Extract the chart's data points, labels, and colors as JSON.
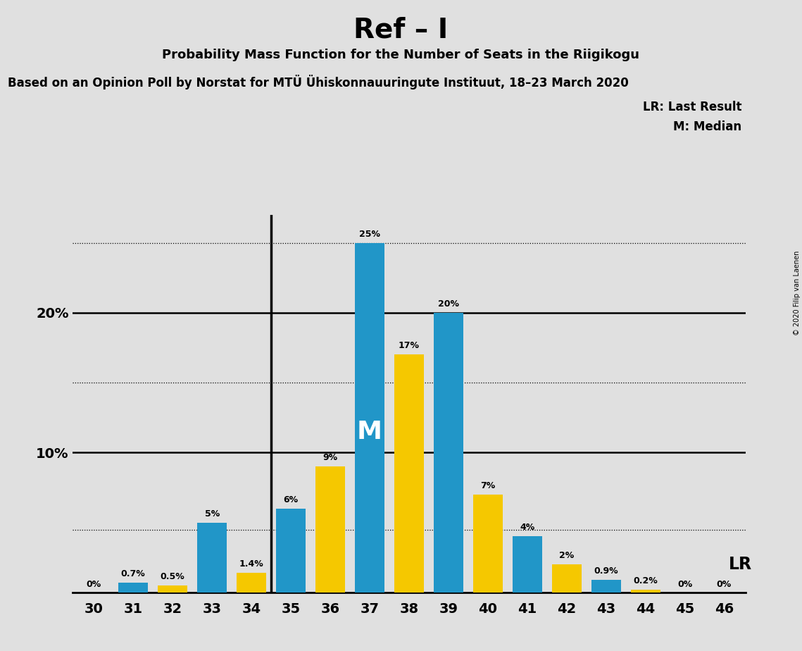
{
  "title": "Ref – I",
  "subtitle": "Probability Mass Function for the Number of Seats in the Riigikogu",
  "subtitle2": "Based on an Opinion Poll by Norstat for MTÜ Ühiskonnauuringute Instituut, 18–23 March 2020",
  "copyright": "© 2020 Filip van Laenen",
  "seats": [
    30,
    31,
    32,
    33,
    34,
    35,
    36,
    37,
    38,
    39,
    40,
    41,
    42,
    43,
    44,
    45,
    46
  ],
  "blue_values": [
    0,
    0.7,
    0,
    5,
    0,
    6,
    0,
    25,
    0,
    20,
    0,
    4,
    0,
    0.9,
    0,
    0,
    0
  ],
  "yellow_values": [
    0,
    0,
    0.5,
    0,
    1.4,
    0,
    9,
    0,
    17,
    0,
    7,
    0,
    2,
    0,
    0.2,
    0,
    0
  ],
  "blue_labels": [
    "0%",
    "0.7%",
    "",
    "5%",
    "",
    "6%",
    "",
    "25%",
    "",
    "20%",
    "",
    "4%",
    "",
    "0.9%",
    "",
    "0%",
    "0%"
  ],
  "yellow_labels": [
    "",
    "",
    "0.5%",
    "",
    "1.4%",
    "",
    "9%",
    "",
    "17%",
    "",
    "7%",
    "",
    "2%",
    "",
    "0.2%",
    "",
    ""
  ],
  "blue_color": "#2196C8",
  "yellow_color": "#F5C800",
  "background_color": "#E0E0E0",
  "ylim_max": 27,
  "lr_between_seats": [
    34,
    35
  ],
  "median_seat": 37,
  "median_label": "M",
  "dotted_lines": [
    4.5,
    15,
    25
  ],
  "solid_lines": [
    10,
    20
  ],
  "legend_lr": "LR: Last Result",
  "legend_m": "M: Median"
}
